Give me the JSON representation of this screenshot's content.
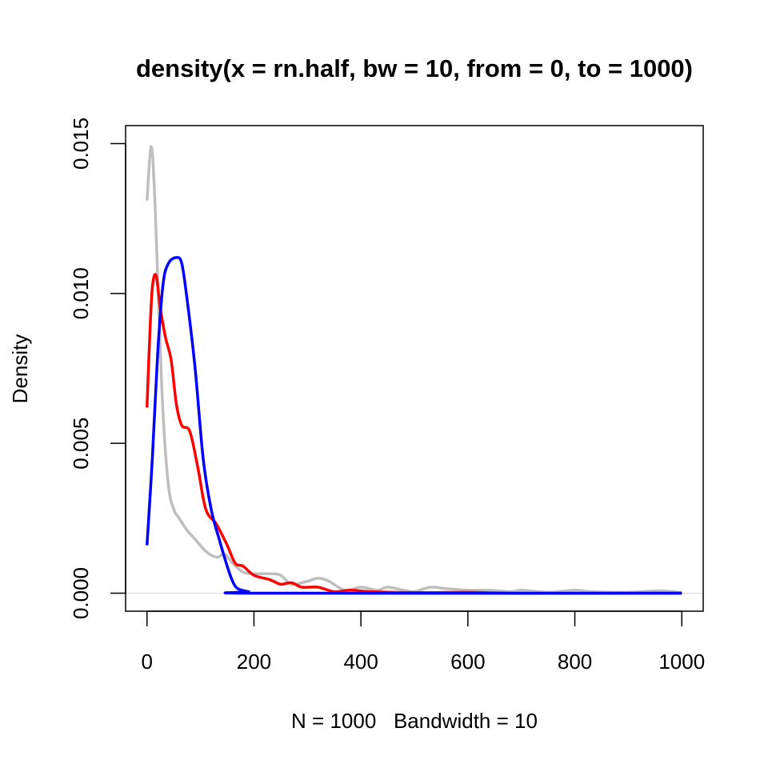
{
  "chart_data": {
    "type": "line",
    "title": "density(x = rn.half, bw = 10, from = 0, to = 1000)",
    "xlabel": "N = 1000   Bandwidth = 10",
    "ylabel": "Density",
    "xlim": [
      -40,
      1040
    ],
    "ylim": [
      -0.0006,
      0.0156
    ],
    "xticks": [
      0,
      200,
      400,
      600,
      800,
      1000
    ],
    "xtick_labels": [
      "0",
      "200",
      "400",
      "600",
      "800",
      "1000"
    ],
    "yticks": [
      0,
      0.005,
      0.01,
      0.015
    ],
    "ytick_labels": [
      "0.000",
      "0.005",
      "0.010",
      "0.015"
    ],
    "grid": false,
    "reference_line": {
      "y": 0,
      "color": "#d9d9d9"
    },
    "series": [
      {
        "name": "gray",
        "color": "#bebebe",
        "x": [
          0,
          8,
          15,
          22,
          30,
          40,
          50,
          60,
          75,
          90,
          110,
          130,
          145,
          160,
          180,
          200,
          230,
          250,
          270,
          300,
          320,
          340,
          370,
          400,
          430,
          450,
          480,
          500,
          530,
          560,
          600,
          640,
          680,
          700,
          750,
          800,
          830,
          900,
          960,
          1000
        ],
        "y": [
          0.0131,
          0.0149,
          0.013,
          0.0095,
          0.006,
          0.0036,
          0.0028,
          0.0025,
          0.0021,
          0.0018,
          0.0014,
          0.0012,
          0.0013,
          0.001,
          0.0007,
          0.00065,
          0.00065,
          0.0006,
          0.0003,
          0.0004,
          0.0005,
          0.0004,
          0.0001,
          0.0002,
          0.0001,
          0.0002,
          0.0001,
          5e-05,
          0.0002,
          0.00015,
          0.0001,
          0.0001,
          5e-05,
          0.0001,
          3e-05,
          0.0001,
          5e-05,
          3e-05,
          8e-05,
          2e-05
        ]
      },
      {
        "name": "red",
        "color": "#ff0000",
        "x": [
          0,
          5,
          10,
          17,
          25,
          35,
          45,
          55,
          65,
          80,
          95,
          110,
          130,
          150,
          165,
          180,
          200,
          230,
          250,
          270,
          290,
          320,
          350,
          380,
          420,
          500,
          600,
          700,
          1000
        ],
        "y": [
          0.0062,
          0.0085,
          0.0102,
          0.0106,
          0.0095,
          0.0085,
          0.0078,
          0.0063,
          0.0056,
          0.0054,
          0.0042,
          0.0028,
          0.0023,
          0.0016,
          0.001,
          0.0009,
          0.0006,
          0.00045,
          0.0003,
          0.00035,
          0.0002,
          0.0002,
          5e-05,
          0.0001,
          5e-05,
          2e-05,
          3e-05,
          0,
          0
        ]
      },
      {
        "name": "blue",
        "color": "#0000ff",
        "x": [
          0,
          10,
          20,
          30,
          40,
          55,
          65,
          75,
          90,
          105,
          120,
          135,
          150,
          160,
          170,
          190,
          210,
          1000
        ],
        "y": [
          0.0016,
          0.0045,
          0.008,
          0.0103,
          0.011,
          0.0112,
          0.011,
          0.0098,
          0.0075,
          0.0045,
          0.0028,
          0.0018,
          0.0009,
          0.0004,
          0.00015,
          5e-05,
          0,
          0
        ]
      }
    ]
  }
}
